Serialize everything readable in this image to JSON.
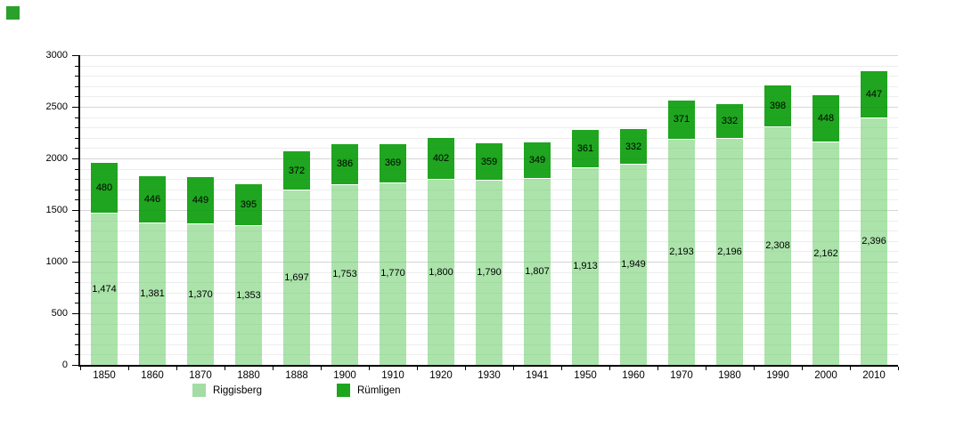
{
  "page": {
    "background": "#ffffff"
  },
  "corner_icon": {
    "name": "green-square",
    "color": "#2aa12a"
  },
  "chart_data": {
    "type": "bar",
    "stacked": true,
    "title": "",
    "xlabel": "",
    "ylabel": "",
    "categories": [
      "1850",
      "1860",
      "1870",
      "1880",
      "1888",
      "1900",
      "1910",
      "1920",
      "1930",
      "1941",
      "1950",
      "1960",
      "1970",
      "1980",
      "1990",
      "2000",
      "2010"
    ],
    "series": [
      {
        "name": "Riggisberg",
        "color": "rgba(102,204,102,0.55)",
        "legend_color": "#a4dda4",
        "values": [
          1474,
          1381,
          1370,
          1353,
          1697,
          1753,
          1770,
          1800,
          1790,
          1807,
          1913,
          1949,
          2193,
          2196,
          2308,
          2162,
          2396
        ]
      },
      {
        "name": "Rümligen",
        "color": "rgba(0,153,0,0.88)",
        "legend_color": "#1ea51e",
        "values": [
          480,
          446,
          449,
          395,
          372,
          386,
          369,
          402,
          359,
          349,
          361,
          332,
          371,
          332,
          398,
          448,
          447
        ]
      }
    ],
    "ylim": [
      0,
      3000
    ],
    "yticks": [
      0,
      500,
      1000,
      1500,
      2000,
      2500,
      3000
    ],
    "minor_step": 100,
    "grid": true,
    "value_labels": true,
    "legend_position": "bottom"
  },
  "legend": {
    "items": [
      {
        "label": "Riggisberg"
      },
      {
        "label": "Rümligen"
      }
    ]
  }
}
